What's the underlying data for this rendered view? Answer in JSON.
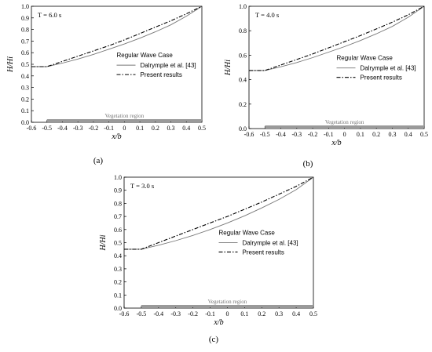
{
  "chart_data": [
    {
      "type": "line",
      "panel_label": "(a)",
      "annotation": "T = 6.0 s",
      "xlabel": "x/b",
      "ylabel": "H/Hi",
      "xlim": [
        -0.6,
        0.5
      ],
      "ylim": [
        0,
        1.0
      ],
      "xticks": [
        "-0.6",
        "-0.5",
        "-0.4",
        "-0.3",
        "-0.2",
        "-0.1",
        "0",
        "0.1",
        "0.2",
        "0.3",
        "0.4",
        "0.5"
      ],
      "yticks": [
        "0.0",
        "0.1",
        "0.2",
        "0.3",
        "0.4",
        "0.5",
        "0.6",
        "0.7",
        "0.8",
        "0.9",
        "1.0"
      ],
      "legend_title": "Regular Wave Case",
      "region_label": "Vegetation region",
      "grid": false,
      "x": [
        -0.6,
        -0.5,
        -0.4,
        -0.3,
        -0.2,
        -0.1,
        0.0,
        0.1,
        0.2,
        0.3,
        0.4,
        0.5
      ],
      "series": [
        {
          "name": "Dalrymple et al. [43]",
          "style": "solid",
          "color": "#777777",
          "values": [
            0.48,
            0.48,
            0.51,
            0.545,
            0.585,
            0.63,
            0.675,
            0.725,
            0.78,
            0.84,
            0.915,
            1.0
          ]
        },
        {
          "name": "Present results",
          "style": "dashdot",
          "color": "#000000",
          "values": [
            0.48,
            0.48,
            0.525,
            0.57,
            0.615,
            0.66,
            0.71,
            0.765,
            0.82,
            0.875,
            0.935,
            1.0
          ]
        }
      ]
    },
    {
      "type": "line",
      "panel_label": "(b)",
      "annotation": "T = 4.0 s",
      "xlabel": "x/b",
      "ylabel": "H/Hi",
      "xlim": [
        -0.6,
        0.5
      ],
      "ylim": [
        0,
        1.0
      ],
      "xticks": [
        "-0.6",
        "-0.5",
        "-0.4",
        "-0.3",
        "-0.2",
        "-0.1",
        "0",
        "0.1",
        "0.2",
        "0.3",
        "0.4",
        "0.5"
      ],
      "yticks": [
        "0.0",
        "0.2",
        "0.4",
        "0.6",
        "0.8",
        "1.0"
      ],
      "legend_title": "Regular Wave Case",
      "region_label": "Vegetation region",
      "grid": false,
      "x": [
        -0.6,
        -0.5,
        -0.4,
        -0.3,
        -0.2,
        -0.1,
        0.0,
        0.1,
        0.2,
        0.3,
        0.4,
        0.5
      ],
      "series": [
        {
          "name": "Dalrymple et al. [43]",
          "style": "solid",
          "color": "#777777",
          "values": [
            0.475,
            0.475,
            0.505,
            0.54,
            0.58,
            0.625,
            0.67,
            0.72,
            0.775,
            0.835,
            0.91,
            1.0
          ]
        },
        {
          "name": "Present results",
          "style": "dashdot",
          "color": "#000000",
          "values": [
            0.475,
            0.475,
            0.52,
            0.565,
            0.61,
            0.66,
            0.71,
            0.76,
            0.815,
            0.87,
            0.93,
            1.0
          ]
        }
      ]
    },
    {
      "type": "line",
      "panel_label": "(c)",
      "annotation": "T = 3.0 s",
      "xlabel": "x/b",
      "ylabel": "H/Hi",
      "xlim": [
        -0.6,
        0.5
      ],
      "ylim": [
        0,
        1.0
      ],
      "xticks": [
        "-0.6",
        "-0.5",
        "-0.4",
        "-0.3",
        "-0.2",
        "-0.1",
        "0",
        "0.1",
        "0.2",
        "0.3",
        "0.4",
        "0.5"
      ],
      "yticks": [
        "0.0",
        "0.1",
        "0.2",
        "0.3",
        "0.4",
        "0.5",
        "0.6",
        "0.7",
        "0.8",
        "0.9",
        "1.0"
      ],
      "legend_title": "Regular Wave Case",
      "region_label": "Vegetation region",
      "grid": false,
      "x": [
        -0.6,
        -0.5,
        -0.4,
        -0.3,
        -0.2,
        -0.1,
        0.0,
        0.1,
        0.2,
        0.3,
        0.4,
        0.5
      ],
      "series": [
        {
          "name": "Dalrymple et al. [43]",
          "style": "solid",
          "color": "#777777",
          "values": [
            0.45,
            0.45,
            0.48,
            0.515,
            0.555,
            0.6,
            0.65,
            0.705,
            0.765,
            0.83,
            0.905,
            1.0
          ]
        },
        {
          "name": "Present results",
          "style": "dashdot",
          "color": "#000000",
          "values": [
            0.45,
            0.45,
            0.5,
            0.55,
            0.6,
            0.65,
            0.7,
            0.755,
            0.81,
            0.87,
            0.93,
            1.0
          ]
        }
      ]
    }
  ]
}
